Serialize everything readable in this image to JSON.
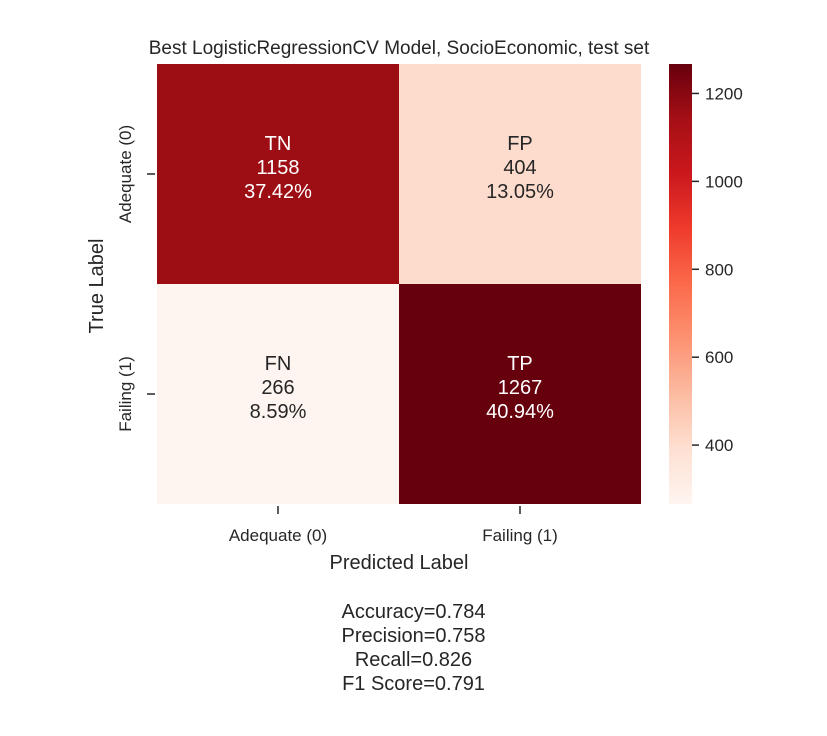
{
  "chart_data": {
    "type": "heatmap",
    "title": "Best LogisticRegressionCV Model, SocioEconomic, test set",
    "xlabel": "Predicted Label",
    "ylabel": "True Label",
    "x_categories": [
      "Adequate (0)",
      "Failing (1)"
    ],
    "y_categories": [
      "Adequate (0)",
      "Failing (1)"
    ],
    "cells": [
      [
        {
          "name": "TN",
          "count": 1158,
          "percent": "37.42%"
        },
        {
          "name": "FP",
          "count": 404,
          "percent": "13.05%"
        }
      ],
      [
        {
          "name": "FN",
          "count": 266,
          "percent": "8.59%"
        },
        {
          "name": "TP",
          "count": 1267,
          "percent": "40.94%"
        }
      ]
    ],
    "colorbar": {
      "range": [
        266,
        1267
      ],
      "ticks": [
        "400",
        "600",
        "800",
        "1000",
        "1200"
      ],
      "tick_values": [
        400,
        600,
        800,
        1000,
        1200
      ],
      "colormap": [
        "#fff5f0",
        "#fee0d2",
        "#fcbba1",
        "#fc9272",
        "#fb6a4a",
        "#ef3b2c",
        "#cb181d",
        "#a50f15",
        "#67000d"
      ]
    },
    "metrics": [
      "Accuracy=0.784",
      "Precision=0.758",
      "Recall=0.826",
      "F1 Score=0.791"
    ]
  }
}
